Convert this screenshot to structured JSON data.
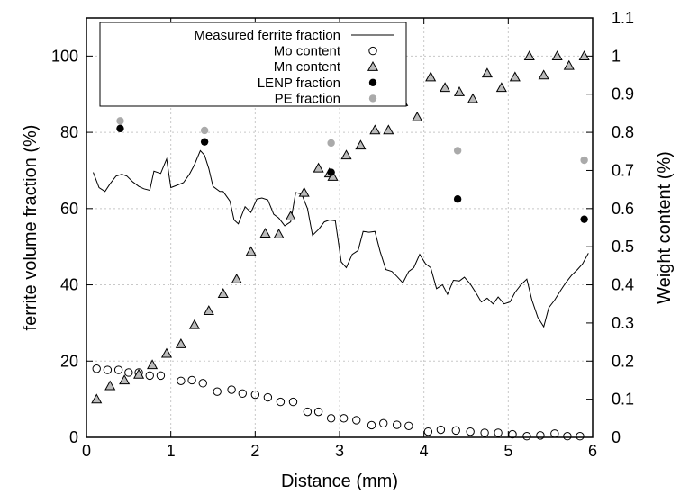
{
  "chart_data": {
    "type": "scatter",
    "xlabel": "Distance (mm)",
    "ylabel": "ferrite volume fraction (%)",
    "y2label": "Weight content (%)",
    "xlim": [
      0,
      6
    ],
    "ylim": [
      0,
      110
    ],
    "y2lim": [
      0,
      1.1
    ],
    "grid": true,
    "legend_position": "top-left",
    "x_ticks": [
      "0",
      "1",
      "2",
      "3",
      "4",
      "5",
      "6"
    ],
    "y_ticks": [
      "0",
      "20",
      "40",
      "60",
      "80",
      "100"
    ],
    "y2_ticks": [
      "0",
      "0.1",
      "0.2",
      "0.3",
      "0.4",
      "0.5",
      "0.6",
      "0.7",
      "0.8",
      "0.9",
      "1",
      "1.1"
    ],
    "series": [
      {
        "name": "Measured ferrite fraction",
        "style": "line",
        "axis": "left",
        "color": "#000000",
        "points": [
          [
            0.08,
            69.5
          ],
          [
            0.15,
            65.5
          ],
          [
            0.22,
            64.5
          ],
          [
            0.28,
            66.5
          ],
          [
            0.35,
            68.5
          ],
          [
            0.42,
            69
          ],
          [
            0.48,
            68.5
          ],
          [
            0.55,
            67
          ],
          [
            0.62,
            65.8
          ],
          [
            0.68,
            65.2
          ],
          [
            0.75,
            64.8
          ],
          [
            0.8,
            69.8
          ],
          [
            0.88,
            69.2
          ],
          [
            0.95,
            73
          ],
          [
            1.0,
            65.5
          ],
          [
            1.08,
            66.2
          ],
          [
            1.15,
            66.8
          ],
          [
            1.22,
            69
          ],
          [
            1.28,
            71.5
          ],
          [
            1.35,
            75.2
          ],
          [
            1.4,
            74
          ],
          [
            1.45,
            70.5
          ],
          [
            1.5,
            65.8
          ],
          [
            1.58,
            64.5
          ],
          [
            1.62,
            64.5
          ],
          [
            1.7,
            62
          ],
          [
            1.75,
            57
          ],
          [
            1.8,
            56
          ],
          [
            1.88,
            60.5
          ],
          [
            1.95,
            59
          ],
          [
            2.02,
            62.5
          ],
          [
            2.08,
            62.8
          ],
          [
            2.15,
            62.3
          ],
          [
            2.22,
            58.5
          ],
          [
            2.28,
            57.5
          ],
          [
            2.35,
            55.5
          ],
          [
            2.42,
            56.5
          ],
          [
            2.48,
            64.2
          ],
          [
            2.55,
            63.8
          ],
          [
            2.62,
            60
          ],
          [
            2.68,
            53
          ],
          [
            2.75,
            54.5
          ],
          [
            2.82,
            56.5
          ],
          [
            2.88,
            57
          ],
          [
            2.95,
            56.8
          ],
          [
            3.02,
            46
          ],
          [
            3.08,
            44.5
          ],
          [
            3.15,
            48
          ],
          [
            3.22,
            49
          ],
          [
            3.28,
            54
          ],
          [
            3.35,
            53.8
          ],
          [
            3.42,
            54
          ],
          [
            3.48,
            48.8
          ],
          [
            3.55,
            44
          ],
          [
            3.62,
            43.5
          ],
          [
            3.68,
            42.2
          ],
          [
            3.75,
            40.5
          ],
          [
            3.82,
            43.5
          ],
          [
            3.88,
            44.5
          ],
          [
            3.95,
            48
          ],
          [
            4.02,
            45.5
          ],
          [
            4.08,
            44.5
          ],
          [
            4.15,
            39
          ],
          [
            4.22,
            40
          ],
          [
            4.28,
            37.5
          ],
          [
            4.35,
            41.2
          ],
          [
            4.42,
            41
          ],
          [
            4.48,
            42
          ],
          [
            4.55,
            40.2
          ],
          [
            4.62,
            37.8
          ],
          [
            4.68,
            35.5
          ],
          [
            4.75,
            36.5
          ],
          [
            4.82,
            35
          ],
          [
            4.88,
            36.8
          ],
          [
            4.95,
            35
          ],
          [
            5.02,
            35.5
          ],
          [
            5.08,
            38
          ],
          [
            5.15,
            40
          ],
          [
            5.22,
            41.5
          ],
          [
            5.28,
            36
          ],
          [
            5.35,
            31.5
          ],
          [
            5.42,
            29
          ],
          [
            5.48,
            34
          ],
          [
            5.55,
            36
          ],
          [
            5.62,
            38.5
          ],
          [
            5.68,
            40.5
          ],
          [
            5.75,
            42.5
          ],
          [
            5.82,
            44
          ],
          [
            5.88,
            45.5
          ],
          [
            5.95,
            48.3
          ]
        ]
      },
      {
        "name": "Mo content",
        "style": "open-circle",
        "axis": "right",
        "color": "#000000",
        "points": [
          [
            0.12,
            0.18
          ],
          [
            0.25,
            0.177
          ],
          [
            0.38,
            0.177
          ],
          [
            0.5,
            0.17
          ],
          [
            0.62,
            0.17
          ],
          [
            0.75,
            0.162
          ],
          [
            0.88,
            0.162
          ],
          [
            1.12,
            0.148
          ],
          [
            1.25,
            0.15
          ],
          [
            1.38,
            0.142
          ],
          [
            1.55,
            0.12
          ],
          [
            1.72,
            0.125
          ],
          [
            1.85,
            0.115
          ],
          [
            2.0,
            0.112
          ],
          [
            2.15,
            0.105
          ],
          [
            2.3,
            0.093
          ],
          [
            2.45,
            0.093
          ],
          [
            2.62,
            0.067
          ],
          [
            2.75,
            0.067
          ],
          [
            2.9,
            0.05
          ],
          [
            3.05,
            0.05
          ],
          [
            3.2,
            0.045
          ],
          [
            3.38,
            0.032
          ],
          [
            3.52,
            0.037
          ],
          [
            3.68,
            0.033
          ],
          [
            3.82,
            0.03
          ],
          [
            4.05,
            0.015
          ],
          [
            4.2,
            0.02
          ],
          [
            4.38,
            0.018
          ],
          [
            4.55,
            0.015
          ],
          [
            4.72,
            0.012
          ],
          [
            4.88,
            0.012
          ],
          [
            5.05,
            0.008
          ],
          [
            5.22,
            0.003
          ],
          [
            5.38,
            0.005
          ],
          [
            5.55,
            0.01
          ],
          [
            5.7,
            0.003
          ],
          [
            5.85,
            0.003
          ]
        ]
      },
      {
        "name": "Mn content",
        "style": "open-triangle",
        "axis": "right",
        "color": "#000000",
        "points": [
          [
            0.12,
            0.1
          ],
          [
            0.28,
            0.135
          ],
          [
            0.45,
            0.15
          ],
          [
            0.62,
            0.165
          ],
          [
            0.78,
            0.19
          ],
          [
            0.95,
            0.22
          ],
          [
            1.12,
            0.245
          ],
          [
            1.28,
            0.295
          ],
          [
            1.45,
            0.332
          ],
          [
            1.62,
            0.377
          ],
          [
            1.78,
            0.415
          ],
          [
            1.95,
            0.487
          ],
          [
            2.12,
            0.535
          ],
          [
            2.28,
            0.533
          ],
          [
            2.42,
            0.58
          ],
          [
            2.58,
            0.642
          ],
          [
            2.75,
            0.706
          ],
          [
            2.88,
            0.693
          ],
          [
            2.92,
            0.684
          ],
          [
            3.08,
            0.74
          ],
          [
            3.25,
            0.766
          ],
          [
            3.42,
            0.806
          ],
          [
            3.58,
            0.806
          ],
          [
            3.75,
            0.88
          ],
          [
            3.92,
            0.84
          ],
          [
            4.08,
            0.945
          ],
          [
            4.25,
            0.917
          ],
          [
            4.42,
            0.906
          ],
          [
            4.58,
            0.888
          ],
          [
            4.75,
            0.955
          ],
          [
            4.92,
            0.917
          ],
          [
            5.08,
            0.945
          ],
          [
            5.25,
            1.0
          ],
          [
            5.42,
            0.95
          ],
          [
            5.58,
            1.0
          ],
          [
            5.72,
            0.975
          ],
          [
            5.9,
            1.0
          ]
        ]
      },
      {
        "name": "LENP fraction",
        "style": "filled-circle",
        "axis": "left",
        "color": "#000000",
        "points": [
          [
            0.4,
            81
          ],
          [
            1.4,
            77.5
          ],
          [
            2.9,
            69.5
          ],
          [
            4.4,
            62.5
          ],
          [
            5.9,
            57.2
          ]
        ]
      },
      {
        "name": "PE fraction",
        "style": "filled-circle",
        "axis": "left",
        "color": "#aaaaaa",
        "points": [
          [
            0.4,
            83
          ],
          [
            1.4,
            80.5
          ],
          [
            2.9,
            77.2
          ],
          [
            4.4,
            75.2
          ],
          [
            5.9,
            72.7
          ]
        ]
      }
    ]
  }
}
